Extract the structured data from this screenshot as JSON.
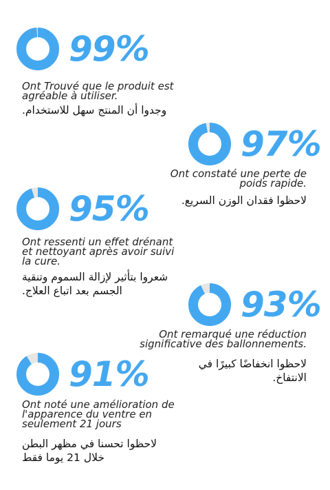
{
  "accent": "#44a8f0",
  "track": "#e6e6e6",
  "stats": [
    {
      "value": 99,
      "percent_label": "99%",
      "fr": "Ont Trouvé que le produit est agréable à utiliser.",
      "ar": "وجدوا أن المنتج سهل للاستخدام."
    },
    {
      "value": 97,
      "percent_label": "97%",
      "fr": "Ont constaté une perte de poids rapide.",
      "ar": "لاحظوا فقدان الوزن السريع."
    },
    {
      "value": 95,
      "percent_label": "95%",
      "fr": "Ont ressenti un effet drénant et nettoyant après avoir suivi la cure.",
      "ar": "شعروا بتأثير لإزالة السموم وتنقية الجسم بعد اتباع العلاج."
    },
    {
      "value": 93,
      "percent_label": "93%",
      "fr": "Ont remarqué une réduction significative des ballonnements.",
      "ar": "لاحظوا انخفاضًا كبيرًا في الانتفاخ."
    },
    {
      "value": 91,
      "percent_label": "91%",
      "fr": "Ont noté une amélioration de l'apparence du ventre en seulement 21 jours",
      "ar": "لاحظوا تحسنا في مظهر البطن خلال 21 يوما فقط"
    }
  ]
}
